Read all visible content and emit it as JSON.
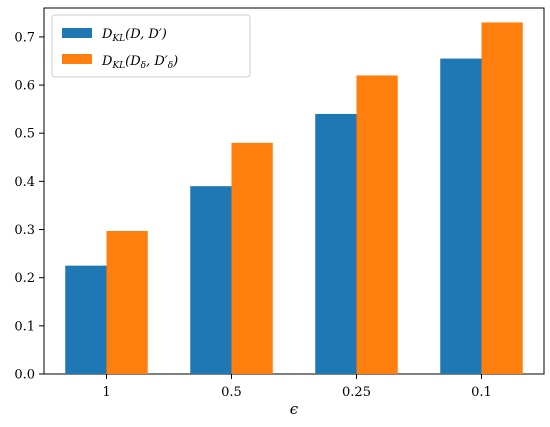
{
  "chart_data": {
    "type": "bar",
    "categories": [
      "1",
      "0.5",
      "0.25",
      "0.1"
    ],
    "series": [
      {
        "name": "D_KL(D, D′)",
        "values": [
          0.225,
          0.39,
          0.54,
          0.655
        ],
        "color": "#1f77b4"
      },
      {
        "name": "D_KL(D_δ, D′_δ)",
        "values": [
          0.297,
          0.48,
          0.62,
          0.73
        ],
        "color": "#ff7f0e"
      }
    ],
    "xlabel": "ϵ",
    "ylabel": "",
    "ylim": [
      0,
      0.76
    ],
    "yticks": [
      "0.0",
      "0.1",
      "0.2",
      "0.3",
      "0.4",
      "0.5",
      "0.6",
      "0.7"
    ],
    "legend_position": "top-left",
    "grid": false
  }
}
